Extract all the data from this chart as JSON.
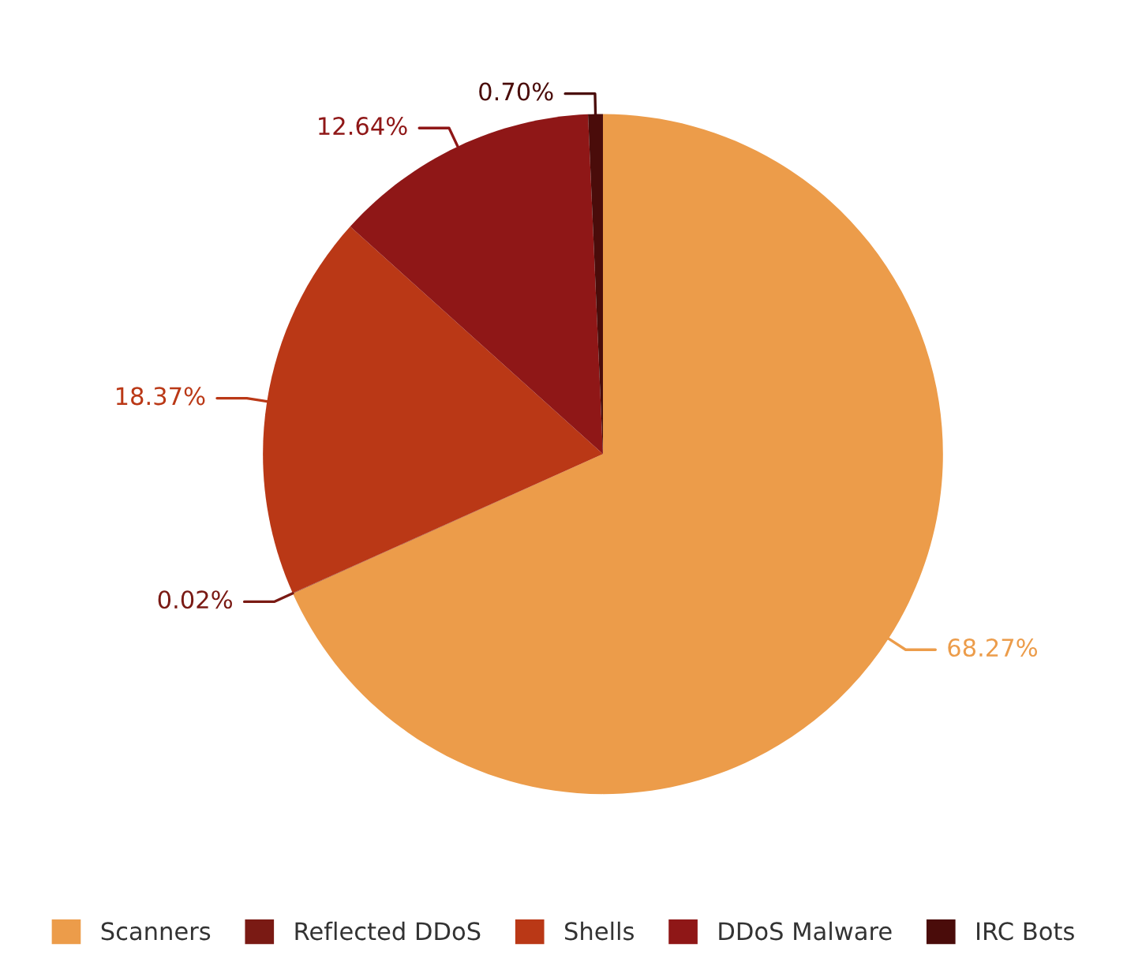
{
  "chart_data": {
    "type": "pie",
    "categories": [
      "Scanners",
      "Reflected DDoS",
      "Shells",
      "DDoS Malware",
      "IRC Bots"
    ],
    "values": [
      68.27,
      0.02,
      18.37,
      12.64,
      0.7
    ],
    "value_labels": [
      "68.27%",
      "0.02%",
      "18.37%",
      "12.64%",
      "0.70%"
    ],
    "colors": [
      "#ec9c4a",
      "#7a1a14",
      "#ba3816",
      "#8f1717",
      "#4a0c0a"
    ],
    "legend": "bottom"
  }
}
